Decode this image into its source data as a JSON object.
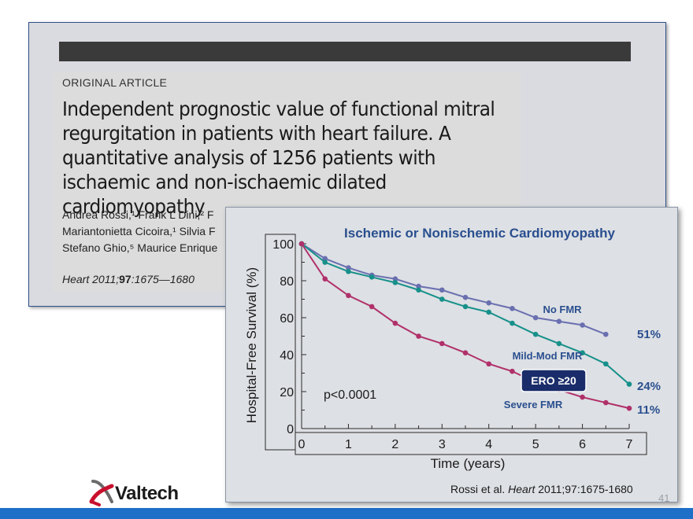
{
  "paper": {
    "article_type": "ORIGINAL ARTICLE",
    "title": "Independent prognostic value of functional mitral regurgitation in patients with heart failure. A quantitative analysis of 1256 patients with ischaemic and non-ischaemic dilated cardiomyopathy",
    "authors": [
      "Andrea Rossi,¹ Frank L Dini,² F",
      "Mariantonietta Cicoira,¹ Silvia F",
      "Stefano Ghio,⁵ Maurice Enrique"
    ],
    "citation_journal": "Heart",
    "citation_year": " 2011;",
    "citation_volume": "97",
    "citation_pages": ":1675—1680"
  },
  "chart_reference_prefix": "Rossi et al. ",
  "chart_reference_journal": "Heart",
  "chart_reference_suffix": " 2011;97:1675-1680",
  "logo_text": "Valtech",
  "page_number": "41",
  "chart_data": {
    "type": "line",
    "title": "Ischemic or Nonischemic Cardiomyopathy",
    "xlabel": "Time (years)",
    "ylabel": "Hospital-Free Survival (%)",
    "xlim": [
      0,
      7
    ],
    "ylim": [
      0,
      100
    ],
    "x_ticks": [
      "0",
      "1",
      "2",
      "3",
      "4",
      "5",
      "6",
      "7"
    ],
    "y_ticks": [
      "0",
      "20",
      "40",
      "60",
      "80",
      "100"
    ],
    "annotation": "p<0.0001",
    "ero_label": "ERO ≥20",
    "series": [
      {
        "name": "No FMR",
        "color": "#6a6fb0",
        "end_label": "51%",
        "x": [
          0,
          0.5,
          1,
          1.5,
          2,
          2.5,
          3,
          3.5,
          4,
          4.5,
          5,
          5.5,
          6,
          6.5
        ],
        "y": [
          100,
          92,
          87,
          83,
          81,
          77,
          75,
          71,
          68,
          65,
          60,
          58,
          56,
          51
        ]
      },
      {
        "name": "Mild-Mod FMR",
        "color": "#17908a",
        "end_label": "24%",
        "x": [
          0,
          0.5,
          1,
          1.5,
          2,
          2.5,
          3,
          3.5,
          4,
          4.5,
          5,
          5.5,
          6,
          6.5,
          7
        ],
        "y": [
          100,
          90,
          85,
          82,
          79,
          75,
          70,
          66,
          63,
          57,
          51,
          46,
          41,
          35,
          24
        ]
      },
      {
        "name": "Severe FMR",
        "color": "#b0306a",
        "end_label": "11%",
        "x": [
          0,
          0.5,
          1,
          1.5,
          2,
          2.5,
          3,
          3.5,
          4,
          4.5,
          5,
          5.5,
          6,
          6.5,
          7
        ],
        "y": [
          100,
          81,
          72,
          66,
          57,
          50,
          46,
          41,
          35,
          31,
          25,
          21,
          17,
          14,
          11
        ]
      }
    ]
  }
}
